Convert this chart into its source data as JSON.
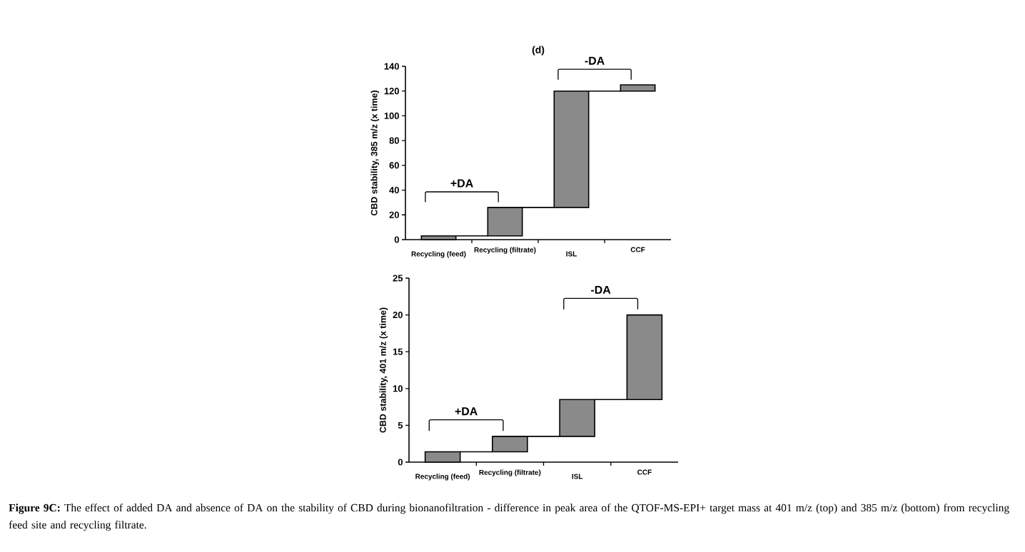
{
  "chart_data": [
    {
      "type": "bar",
      "title": "(d)",
      "ylabel": "CBD stability, 385 m/z (x time)",
      "categories": [
        "Recycling (feed)",
        "Recycling (filtrate)",
        "ISL",
        "CCF"
      ],
      "base": [
        0,
        3,
        26,
        120
      ],
      "values": [
        3,
        23,
        94,
        5
      ],
      "color": "#8a8a8a",
      "ylim": [
        0,
        140
      ],
      "yticks": [
        0,
        20,
        40,
        60,
        80,
        100,
        120,
        140
      ],
      "annotations": [
        "+DA",
        "-DA"
      ]
    },
    {
      "type": "bar",
      "ylabel": "CBD stability, 401 m/z (x time)",
      "categories": [
        "Recycling (feed)",
        "Recycling (filtrate)",
        "ISL",
        "CCF"
      ],
      "base": [
        0,
        1.4,
        3.5,
        8.5
      ],
      "values": [
        1.4,
        2.1,
        5,
        11.5
      ],
      "color": "#8a8a8a",
      "ylim": [
        0,
        25
      ],
      "yticks": [
        0,
        5,
        10,
        15,
        20,
        25
      ],
      "annotations": [
        "+DA",
        "-DA",
        "**Figure 9C:** The effect of added DA and absence of DA on the stability of CBD during bionanofiltration - difference in peak area of the QTOF-MS-EPI+ target mass at 401 m/z (top) and 385 m/z (bottom) from recycling feed site and recycling filtrate."
      ]
    }
  ]
}
